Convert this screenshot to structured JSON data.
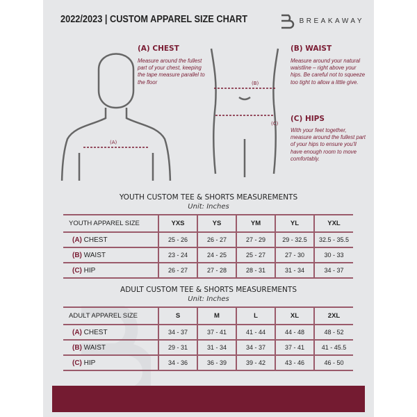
{
  "header": {
    "title": "2022/2023 | CUSTOM APPAREL SIZE CHART",
    "brand": "BREAKAWAY"
  },
  "measures": {
    "chest": {
      "label": "(A) CHEST",
      "marker": "(A)",
      "desc": "Measure around the fullest part of your chest, keeping the tape measure parallel to the floor"
    },
    "waist": {
      "label": "(B) WAIST",
      "marker": "(B)",
      "desc": "Measure around your natural waistline – right above your hips. Be careful not to squeeze too tight to allow a little give."
    },
    "hips": {
      "label": "(C) HIPS",
      "marker": "(C)",
      "desc": "With your feet together, measure around the fullest part of your hips to ensure you'll have enough room to move comfortably."
    }
  },
  "youth": {
    "title": "YOUTH CUSTOM TEE & SHORTS MEASUREMENTS",
    "unit": "Unit: Inches",
    "header": "YOUTH APPAREL SIZE",
    "sizes": [
      "YXS",
      "YS",
      "YM",
      "YL",
      "YXL"
    ],
    "rows": [
      {
        "code": "(A)",
        "name": "CHEST",
        "values": [
          "25 - 26",
          "26 - 27",
          "27 - 29",
          "29 - 32.5",
          "32.5 - 35.5"
        ]
      },
      {
        "code": "(B)",
        "name": "WAIST",
        "values": [
          "23 - 24",
          "24 - 25",
          "25 - 27",
          "27 - 30",
          "30 - 33"
        ]
      },
      {
        "code": "(C)",
        "name": "HIP",
        "values": [
          "26 - 27",
          "27 - 28",
          "28 - 31",
          "31 - 34",
          "34 - 37"
        ]
      }
    ]
  },
  "adult": {
    "title": "ADULT CUSTOM TEE & SHORTS MEASUREMENTS",
    "unit": "Unit: Inches",
    "header": "ADULT APPAREL SIZE",
    "sizes": [
      "S",
      "M",
      "L",
      "XL",
      "2XL"
    ],
    "rows": [
      {
        "code": "(A)",
        "name": "CHEST",
        "values": [
          "34 - 37",
          "37 - 41",
          "41 - 44",
          "44 - 48",
          "48 - 52"
        ]
      },
      {
        "code": "(B)",
        "name": "WAIST",
        "values": [
          "29 - 31",
          "31 - 34",
          "34 - 37",
          "37 - 41",
          "41 - 45.5"
        ]
      },
      {
        "code": "(C)",
        "name": "HIP",
        "values": [
          "34 - 36",
          "36 - 39",
          "39 - 42",
          "43 - 46",
          "46 - 50"
        ]
      }
    ]
  },
  "colors": {
    "accent": "#741b31",
    "background": "#e6e7e9"
  }
}
